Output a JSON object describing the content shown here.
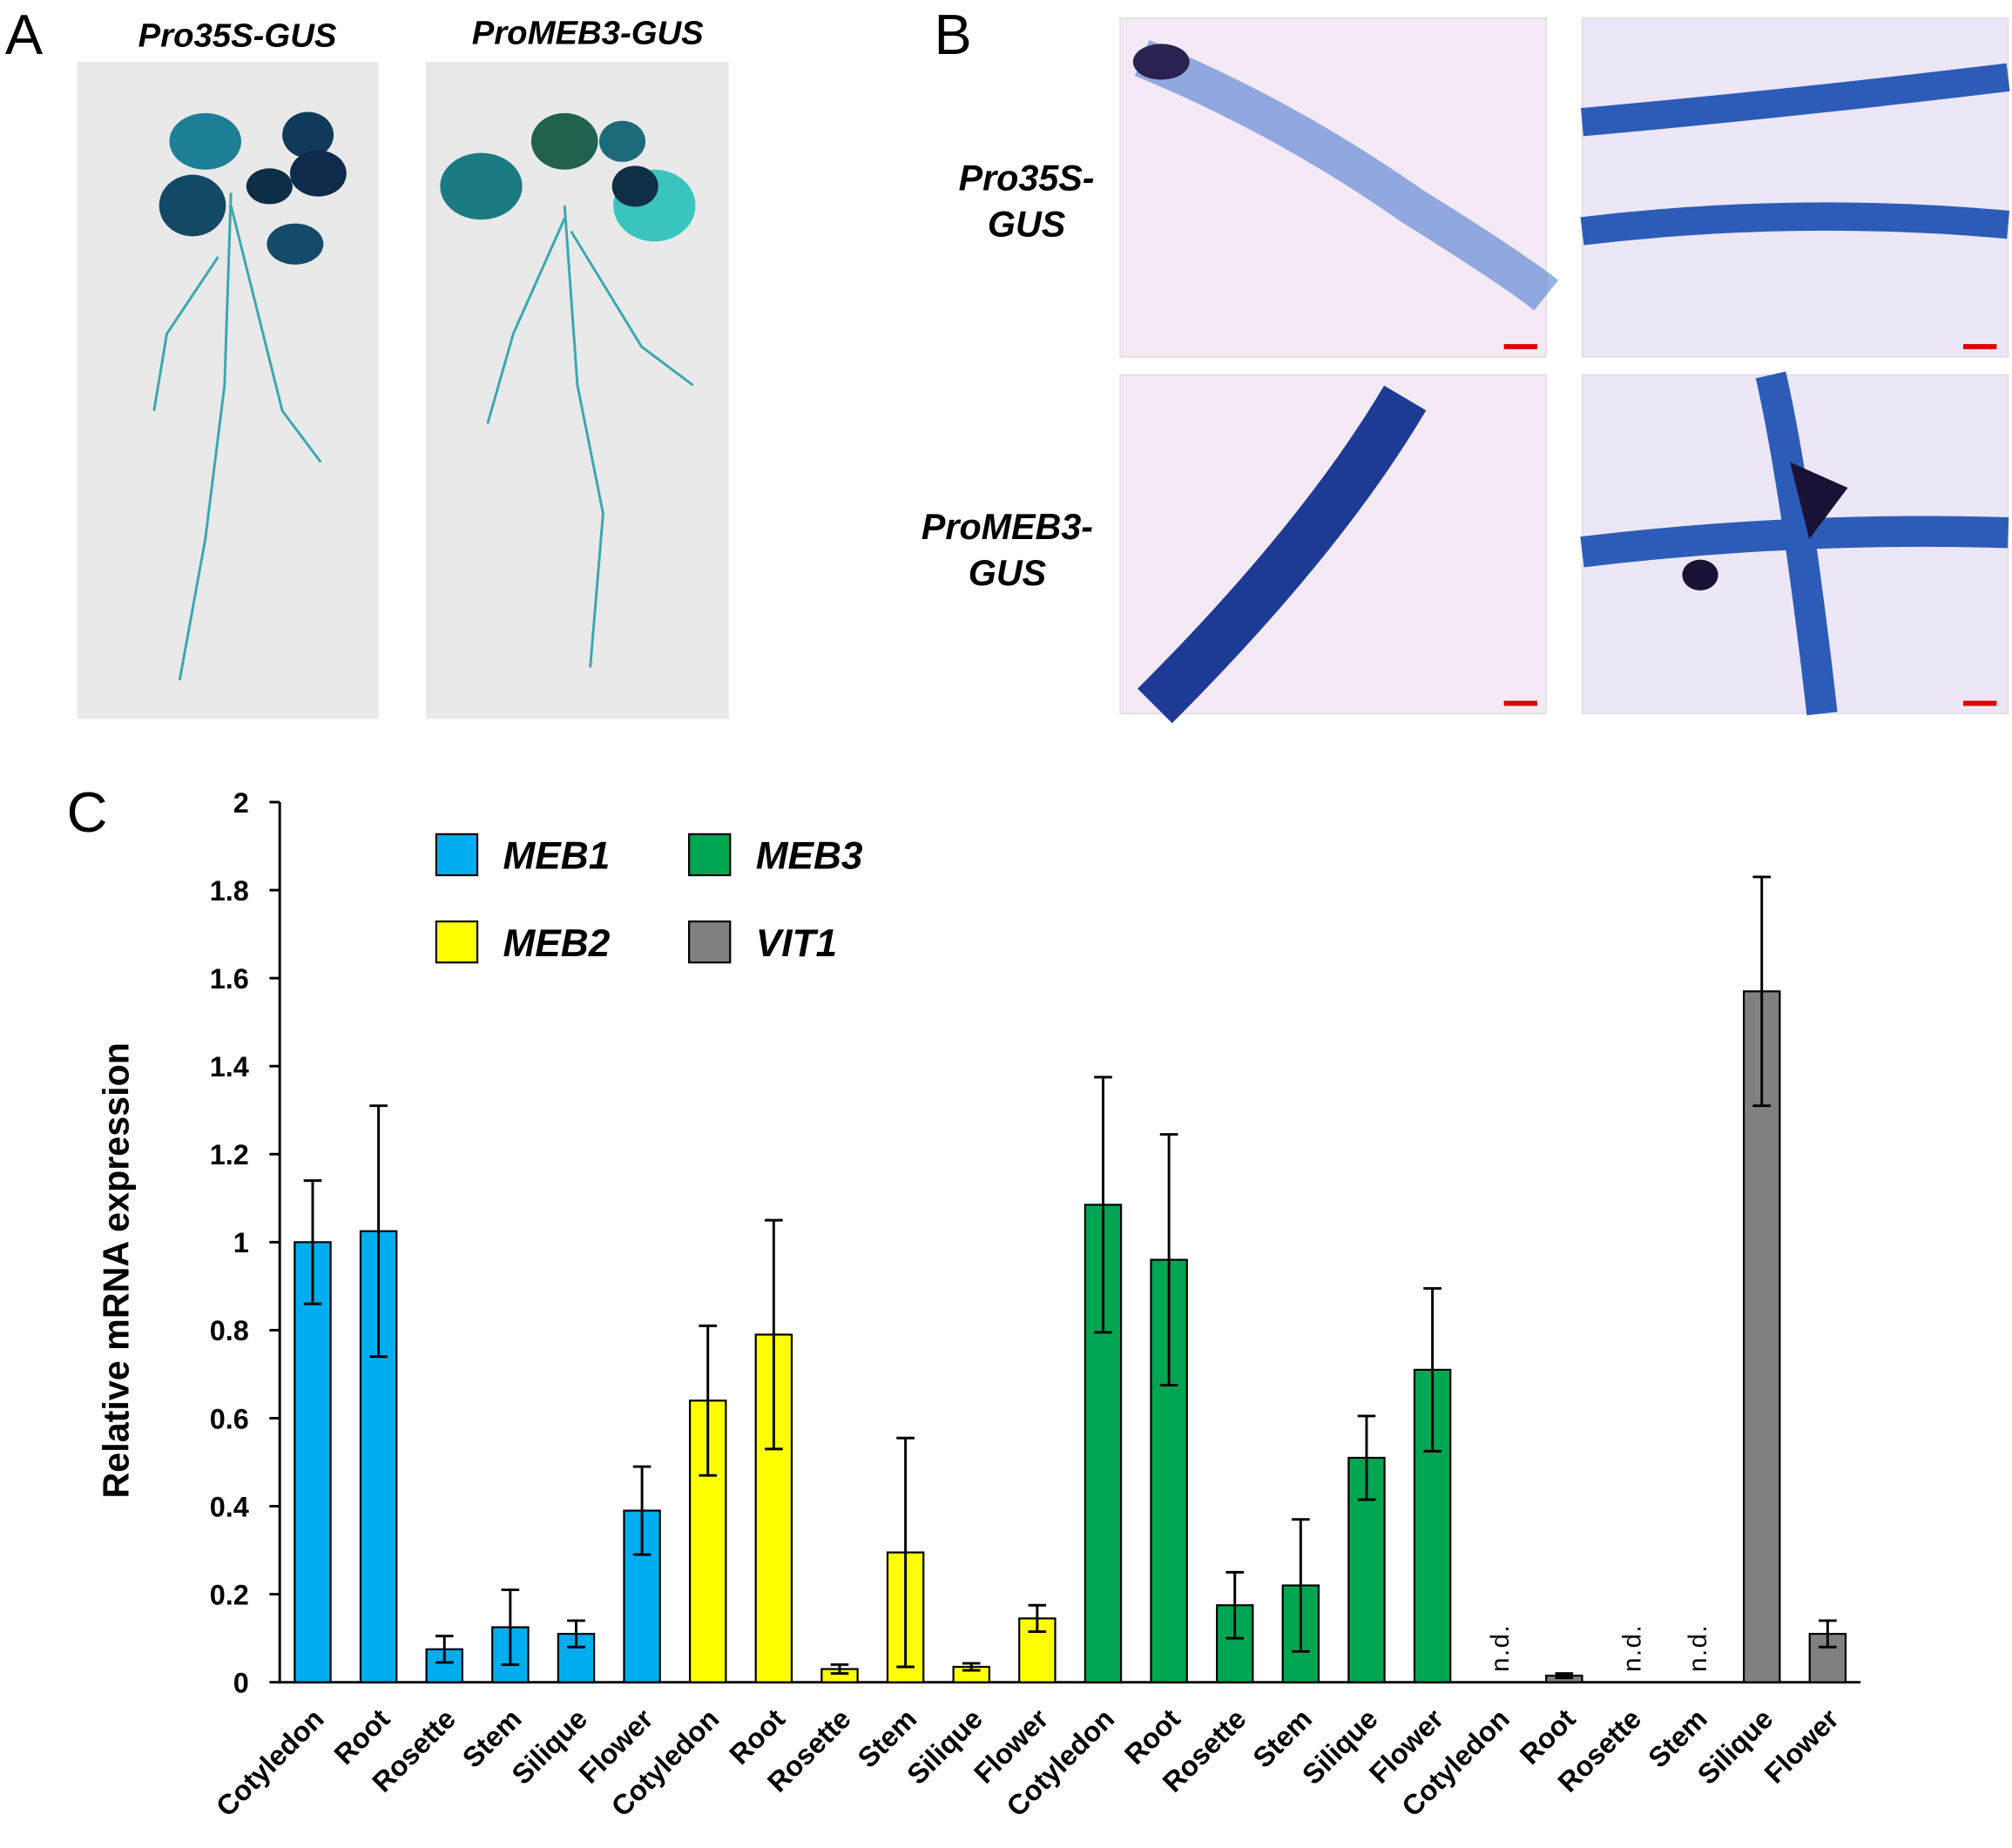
{
  "figure": {
    "panel_labels": [
      "A",
      "B",
      "C"
    ],
    "panel_a": [
      "Pro35S-GUS",
      "ProMEB3-GUS"
    ],
    "panel_b": [
      [
        "Pro35S-",
        "GUS"
      ],
      [
        "ProMEB3-",
        "GUS"
      ]
    ]
  },
  "chart_data": {
    "type": "bar",
    "y_label": "Relative mRNA expression",
    "categories": [
      "Cotyledon",
      "Root",
      "Rosette",
      "Stem",
      "Silique",
      "Flower",
      "Cotyledon",
      "Root",
      "Rosette",
      "Stem",
      "Silique",
      "Flower",
      "Cotyledon",
      "Root",
      "Rosette",
      "Stem",
      "Silique",
      "Flower",
      "Cotyledon",
      "Root",
      "Rosette",
      "Stem",
      "Silique",
      "Flower"
    ],
    "series": [
      {
        "name": "MEB1",
        "color": "#00aeef",
        "values": [
          1.0,
          1.025,
          0.075,
          0.125,
          0.11,
          0.39,
          null,
          null,
          null,
          null,
          null,
          null,
          null,
          null,
          null,
          null,
          null,
          null,
          null,
          null,
          null,
          null,
          null,
          null
        ],
        "errors": [
          0.14,
          0.285,
          0.03,
          0.085,
          0.03,
          0.1,
          null,
          null,
          null,
          null,
          null,
          null,
          null,
          null,
          null,
          null,
          null,
          null,
          null,
          null,
          null,
          null,
          null,
          null
        ]
      },
      {
        "name": "MEB2",
        "color": "#ffff00",
        "values": [
          null,
          null,
          null,
          null,
          null,
          null,
          0.64,
          0.79,
          0.03,
          0.295,
          0.035,
          0.145,
          null,
          null,
          null,
          null,
          null,
          null,
          null,
          null,
          null,
          null,
          null,
          null
        ],
        "errors": [
          null,
          null,
          null,
          null,
          null,
          null,
          0.17,
          0.26,
          0.01,
          0.26,
          0.008,
          0.03,
          null,
          null,
          null,
          null,
          null,
          null,
          null,
          null,
          null,
          null,
          null,
          null
        ]
      },
      {
        "name": "MEB3",
        "color": "#00a651",
        "values": [
          null,
          null,
          null,
          null,
          null,
          null,
          null,
          null,
          null,
          null,
          null,
          null,
          1.085,
          0.96,
          0.175,
          0.22,
          0.51,
          0.71,
          null,
          null,
          null,
          null,
          null,
          null
        ],
        "errors": [
          null,
          null,
          null,
          null,
          null,
          null,
          null,
          null,
          null,
          null,
          null,
          null,
          0.29,
          0.285,
          0.075,
          0.15,
          0.095,
          0.185,
          null,
          null,
          null,
          null,
          null,
          null
        ]
      },
      {
        "name": "VIT1",
        "color": "#808080",
        "values": [
          null,
          null,
          null,
          null,
          null,
          null,
          null,
          null,
          null,
          null,
          null,
          null,
          null,
          null,
          null,
          null,
          null,
          null,
          null,
          0.015,
          null,
          null,
          1.57,
          0.11
        ],
        "errors": [
          null,
          null,
          null,
          null,
          null,
          null,
          null,
          null,
          null,
          null,
          null,
          null,
          null,
          null,
          null,
          null,
          null,
          null,
          null,
          0.005,
          null,
          null,
          0.26,
          0.03
        ],
        "value_labels": [
          null,
          null,
          null,
          null,
          null,
          null,
          null,
          null,
          null,
          null,
          null,
          null,
          null,
          null,
          null,
          null,
          null,
          null,
          "n.d.",
          null,
          "n.d.",
          "n.d.",
          null,
          null
        ]
      }
    ],
    "ylim": [
      0,
      2
    ],
    "yticks": [
      0,
      0.2,
      0.4,
      0.6,
      0.8,
      1,
      1.2,
      1.4,
      1.6,
      1.8,
      2
    ],
    "legend": "top-left"
  }
}
